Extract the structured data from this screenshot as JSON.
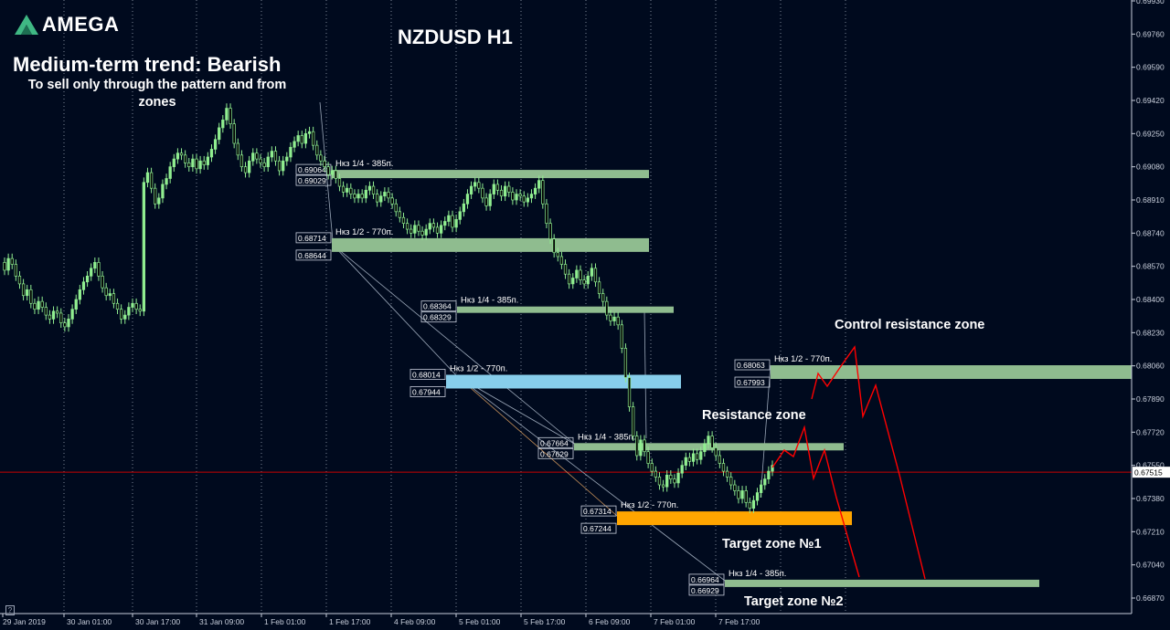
{
  "brand": {
    "name": "AMEGA",
    "logo_icon": "amega-chevron-icon"
  },
  "headline": "Medium-term trend: Bearish",
  "subline": "To sell only through the pattern and from zones",
  "annotations": {
    "control_resistance": "Control resistance zone",
    "resistance": "Resistance zone",
    "target1": "Target zone №1",
    "target2": "Target zone №2"
  },
  "corner_mark": "?",
  "colors": {
    "background": "#000a1e",
    "grid": "#7b8696",
    "candle": "#90ee90",
    "zone_green": "#8fbc8f",
    "zone_blue": "#87ceeb",
    "zone_orange": "#ffa500",
    "projection": "#ff0000",
    "current_price_line": "#c80000",
    "axis_text": "#c8cfdc"
  },
  "chart_data": {
    "type": "candlestick",
    "title": "NZDUSD H1",
    "symbol": "NZDUSD",
    "timeframe": "H1",
    "y_ticks": [
      0.6687,
      0.6704,
      0.6721,
      0.6738,
      0.6755,
      0.6772,
      0.6789,
      0.6806,
      0.6823,
      0.684,
      0.6857,
      0.6874,
      0.6891,
      0.6908,
      0.6925,
      0.6942,
      0.6959,
      0.6976,
      0.6993
    ],
    "ylim": [
      0.668,
      0.6995
    ],
    "x_ticks": [
      "29 Jan 2019",
      "30 Jan 01:00",
      "30 Jan 17:00",
      "31 Jan 09:00",
      "1 Feb 01:00",
      "1 Feb 17:00",
      "4 Feb 09:00",
      "5 Feb 01:00",
      "5 Feb 17:00",
      "6 Feb 09:00",
      "7 Feb 01:00",
      "7 Feb 17:00"
    ],
    "current_price": "0.67515",
    "closes": [
      0.6855,
      0.6861,
      0.6858,
      0.6852,
      0.6848,
      0.6842,
      0.6845,
      0.6838,
      0.6835,
      0.6839,
      0.6836,
      0.6832,
      0.683,
      0.6834,
      0.6833,
      0.6828,
      0.6826,
      0.683,
      0.6835,
      0.684,
      0.6845,
      0.6849,
      0.6852,
      0.6856,
      0.6859,
      0.6852,
      0.6846,
      0.6842,
      0.6843,
      0.6838,
      0.6835,
      0.683,
      0.6832,
      0.6836,
      0.6838,
      0.6835,
      0.6834,
      0.69,
      0.6905,
      0.6897,
      0.6889,
      0.6892,
      0.6899,
      0.6902,
      0.6908,
      0.6912,
      0.6915,
      0.6914,
      0.691,
      0.6908,
      0.6912,
      0.6907,
      0.6911,
      0.6909,
      0.6913,
      0.6917,
      0.6922,
      0.6928,
      0.6932,
      0.6938,
      0.693,
      0.692,
      0.6914,
      0.6908,
      0.6905,
      0.6911,
      0.6915,
      0.6912,
      0.691,
      0.6908,
      0.6913,
      0.6916,
      0.6911,
      0.6906,
      0.6911,
      0.6913,
      0.6918,
      0.6921,
      0.6924,
      0.692,
      0.6925,
      0.6926,
      0.6919,
      0.6914,
      0.6911,
      0.6908,
      0.6904,
      0.6906,
      0.6902,
      0.6898,
      0.6895,
      0.6897,
      0.6894,
      0.6892,
      0.6894,
      0.6892,
      0.6896,
      0.6898,
      0.6894,
      0.689,
      0.6893,
      0.6895,
      0.6892,
      0.6889,
      0.6885,
      0.6882,
      0.6879,
      0.6876,
      0.6874,
      0.6878,
      0.6875,
      0.6873,
      0.6876,
      0.6879,
      0.6877,
      0.6874,
      0.6878,
      0.688,
      0.6883,
      0.6877,
      0.6881,
      0.6885,
      0.6889,
      0.6894,
      0.6898,
      0.69,
      0.6897,
      0.6892,
      0.6888,
      0.6894,
      0.6899,
      0.6896,
      0.6893,
      0.6898,
      0.6895,
      0.6891,
      0.6894,
      0.6893,
      0.689,
      0.6892,
      0.6894,
      0.6897,
      0.6901,
      0.6889,
      0.6879,
      0.6871,
      0.6864,
      0.6862,
      0.6858,
      0.6853,
      0.6848,
      0.6851,
      0.6855,
      0.685,
      0.6848,
      0.6852,
      0.6856,
      0.6849,
      0.6843,
      0.6839,
      0.6832,
      0.6829,
      0.6831,
      0.6827,
      0.6815,
      0.68,
      0.6785,
      0.677,
      0.676,
      0.6768,
      0.6762,
      0.6756,
      0.6752,
      0.6749,
      0.6745,
      0.6744,
      0.675,
      0.6748,
      0.6746,
      0.6751,
      0.6755,
      0.6759,
      0.6757,
      0.6761,
      0.6758,
      0.6762,
      0.6766,
      0.677,
      0.6764,
      0.676,
      0.6756,
      0.6752,
      0.6749,
      0.6745,
      0.6742,
      0.6738,
      0.6742,
      0.6736,
      0.6733,
      0.6737,
      0.6741,
      0.6745,
      0.6748,
      0.6752,
      0.6755
    ]
  },
  "price_levels": [
    {
      "label": "Нкз 1/4 - 385п.",
      "top": "0.69064",
      "bottom": "0.69029",
      "color": "green"
    },
    {
      "label": "Нкз 1/2 - 770п.",
      "top": "0.68714",
      "bottom": "0.68644",
      "color": "green"
    },
    {
      "label": "Нкз 1/4 - 385п.",
      "top": "0.68364",
      "bottom": "0.68329",
      "color": "green"
    },
    {
      "label": "Нкз 1/2 - 770п.",
      "top": "0.68014",
      "bottom": "0.67944",
      "color": "blue"
    },
    {
      "label": "Нкз 1/4 - 385п.",
      "top": "0.67664",
      "bottom": "0.67629",
      "color": "green"
    },
    {
      "label": "Нкз 1/2 - 770п.",
      "top": "0.67314",
      "bottom": "0.67244",
      "color": "orange"
    },
    {
      "label": "Нкз 1/4 - 385п.",
      "top": "0.66964",
      "bottom": "0.66929",
      "color": "green"
    },
    {
      "label": "Нкз 1/2 - 770п.",
      "top": "0.68063",
      "bottom": "0.67993",
      "color": "green"
    }
  ]
}
